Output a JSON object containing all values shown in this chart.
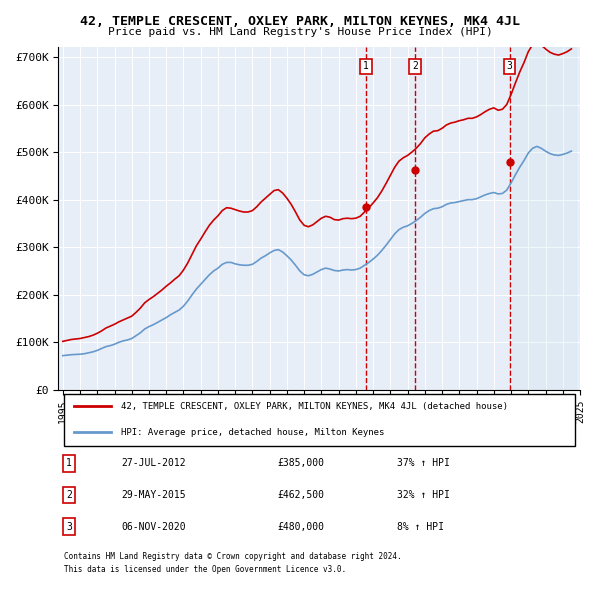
{
  "title": "42, TEMPLE CRESCENT, OXLEY PARK, MILTON KEYNES, MK4 4JL",
  "subtitle": "Price paid vs. HM Land Registry's House Price Index (HPI)",
  "background_color": "#f0f4ff",
  "plot_bg_color": "#e8eef8",
  "ylabel_format": "£{0}K",
  "yticks": [
    0,
    100000,
    200000,
    300000,
    400000,
    500000,
    600000,
    700000
  ],
  "ytick_labels": [
    "£0",
    "£100K",
    "£200K",
    "£300K",
    "£400K",
    "£500K",
    "£600K",
    "£700K"
  ],
  "sale_dates": [
    "2012-07-27",
    "2015-05-29",
    "2020-11-06"
  ],
  "sale_prices": [
    385000,
    462500,
    480000
  ],
  "sale_labels": [
    "1",
    "2",
    "3"
  ],
  "sale_info": [
    {
      "num": "1",
      "date": "27-JUL-2012",
      "price": "£385,000",
      "pct": "37% ↑ HPI"
    },
    {
      "num": "2",
      "date": "29-MAY-2015",
      "price": "£462,500",
      "pct": "32% ↑ HPI"
    },
    {
      "num": "3",
      "date": "06-NOV-2020",
      "price": "£480,000",
      "pct": "8% ↑ HPI"
    }
  ],
  "hpi_color": "#6699cc",
  "property_color": "#cc0000",
  "legend_property": "42, TEMPLE CRESCENT, OXLEY PARK, MILTON KEYNES, MK4 4JL (detached house)",
  "legend_hpi": "HPI: Average price, detached house, Milton Keynes",
  "footer1": "Contains HM Land Registry data © Crown copyright and database right 2024.",
  "footer2": "This data is licensed under the Open Government Licence v3.0.",
  "hpi_data": {
    "dates": [
      1995.0,
      1995.25,
      1995.5,
      1995.75,
      1996.0,
      1996.25,
      1996.5,
      1996.75,
      1997.0,
      1997.25,
      1997.5,
      1997.75,
      1998.0,
      1998.25,
      1998.5,
      1998.75,
      1999.0,
      1999.25,
      1999.5,
      1999.75,
      2000.0,
      2000.25,
      2000.5,
      2000.75,
      2001.0,
      2001.25,
      2001.5,
      2001.75,
      2002.0,
      2002.25,
      2002.5,
      2002.75,
      2003.0,
      2003.25,
      2003.5,
      2003.75,
      2004.0,
      2004.25,
      2004.5,
      2004.75,
      2005.0,
      2005.25,
      2005.5,
      2005.75,
      2006.0,
      2006.25,
      2006.5,
      2006.75,
      2007.0,
      2007.25,
      2007.5,
      2007.75,
      2008.0,
      2008.25,
      2008.5,
      2008.75,
      2009.0,
      2009.25,
      2009.5,
      2009.75,
      2010.0,
      2010.25,
      2010.5,
      2010.75,
      2011.0,
      2011.25,
      2011.5,
      2011.75,
      2012.0,
      2012.25,
      2012.5,
      2012.75,
      2013.0,
      2013.25,
      2013.5,
      2013.75,
      2014.0,
      2014.25,
      2014.5,
      2014.75,
      2015.0,
      2015.25,
      2015.5,
      2015.75,
      2016.0,
      2016.25,
      2016.5,
      2016.75,
      2017.0,
      2017.25,
      2017.5,
      2017.75,
      2018.0,
      2018.25,
      2018.5,
      2018.75,
      2019.0,
      2019.25,
      2019.5,
      2019.75,
      2020.0,
      2020.25,
      2020.5,
      2020.75,
      2021.0,
      2021.25,
      2021.5,
      2021.75,
      2022.0,
      2022.25,
      2022.5,
      2022.75,
      2023.0,
      2023.25,
      2023.5,
      2023.75,
      2024.0,
      2024.25,
      2024.5
    ],
    "values": [
      72000,
      73000,
      74000,
      74500,
      75000,
      76000,
      78000,
      80000,
      83000,
      87000,
      91000,
      93000,
      96000,
      100000,
      103000,
      105000,
      108000,
      114000,
      120000,
      128000,
      133000,
      137000,
      142000,
      147000,
      152000,
      158000,
      163000,
      168000,
      176000,
      187000,
      200000,
      212000,
      222000,
      232000,
      242000,
      250000,
      256000,
      264000,
      268000,
      268000,
      265000,
      263000,
      262000,
      262000,
      264000,
      270000,
      277000,
      282000,
      288000,
      293000,
      295000,
      290000,
      282000,
      273000,
      262000,
      250000,
      242000,
      240000,
      243000,
      248000,
      253000,
      256000,
      254000,
      251000,
      250000,
      252000,
      253000,
      252000,
      253000,
      256000,
      262000,
      268000,
      275000,
      283000,
      293000,
      304000,
      316000,
      328000,
      337000,
      342000,
      345000,
      350000,
      356000,
      363000,
      371000,
      377000,
      381000,
      382000,
      385000,
      390000,
      393000,
      394000,
      396000,
      398000,
      400000,
      400000,
      402000,
      406000,
      410000,
      413000,
      415000,
      412000,
      413000,
      420000,
      435000,
      452000,
      468000,
      482000,
      498000,
      508000,
      512000,
      508000,
      502000,
      497000,
      494000,
      493000,
      495000,
      498000,
      502000
    ]
  },
  "property_data": {
    "dates": [
      1995.0,
      1995.25,
      1995.5,
      1995.75,
      1996.0,
      1996.25,
      1996.5,
      1996.75,
      1997.0,
      1997.25,
      1997.5,
      1997.75,
      1998.0,
      1998.25,
      1998.5,
      1998.75,
      1999.0,
      1999.25,
      1999.5,
      1999.75,
      2000.0,
      2000.25,
      2000.5,
      2000.75,
      2001.0,
      2001.25,
      2001.5,
      2001.75,
      2002.0,
      2002.25,
      2002.5,
      2002.75,
      2003.0,
      2003.25,
      2003.5,
      2003.75,
      2004.0,
      2004.25,
      2004.5,
      2004.75,
      2005.0,
      2005.25,
      2005.5,
      2005.75,
      2006.0,
      2006.25,
      2006.5,
      2006.75,
      2007.0,
      2007.25,
      2007.5,
      2007.75,
      2008.0,
      2008.25,
      2008.5,
      2008.75,
      2009.0,
      2009.25,
      2009.5,
      2009.75,
      2010.0,
      2010.25,
      2010.5,
      2010.75,
      2011.0,
      2011.25,
      2011.5,
      2011.75,
      2012.0,
      2012.25,
      2012.5,
      2012.75,
      2013.0,
      2013.25,
      2013.5,
      2013.75,
      2014.0,
      2014.25,
      2014.5,
      2014.75,
      2015.0,
      2015.25,
      2015.5,
      2015.75,
      2016.0,
      2016.25,
      2016.5,
      2016.75,
      2017.0,
      2017.25,
      2017.5,
      2017.75,
      2018.0,
      2018.25,
      2018.5,
      2018.75,
      2019.0,
      2019.25,
      2019.5,
      2019.75,
      2020.0,
      2020.25,
      2020.5,
      2020.75,
      2021.0,
      2021.25,
      2021.5,
      2021.75,
      2022.0,
      2022.25,
      2022.5,
      2022.75,
      2023.0,
      2023.25,
      2023.5,
      2023.75,
      2024.0,
      2024.25,
      2024.5
    ],
    "values": [
      102000,
      104000,
      106000,
      107000,
      108000,
      110000,
      112000,
      115000,
      119000,
      124000,
      130000,
      134000,
      138000,
      143000,
      147000,
      151000,
      155000,
      163000,
      172000,
      183000,
      190000,
      196000,
      203000,
      210000,
      218000,
      225000,
      233000,
      240000,
      252000,
      267000,
      285000,
      303000,
      317000,
      332000,
      346000,
      357000,
      366000,
      377000,
      383000,
      382000,
      379000,
      376000,
      374000,
      374000,
      377000,
      385000,
      395000,
      403000,
      411000,
      419000,
      421000,
      414000,
      403000,
      390000,
      374000,
      357000,
      346000,
      343000,
      347000,
      354000,
      361000,
      365000,
      363000,
      358000,
      357000,
      360000,
      361000,
      360000,
      361000,
      365000,
      374000,
      383000,
      393000,
      404000,
      418000,
      434000,
      451000,
      468000,
      481000,
      488000,
      493000,
      500000,
      508000,
      518000,
      530000,
      538000,
      544000,
      545000,
      550000,
      557000,
      561000,
      563000,
      566000,
      568000,
      571000,
      571000,
      574000,
      579000,
      585000,
      590000,
      593000,
      588000,
      590000,
      600000,
      621000,
      645000,
      668000,
      688000,
      711000,
      726000,
      731000,
      725000,
      717000,
      710000,
      706000,
      704000,
      707000,
      711000,
      717000
    ]
  }
}
